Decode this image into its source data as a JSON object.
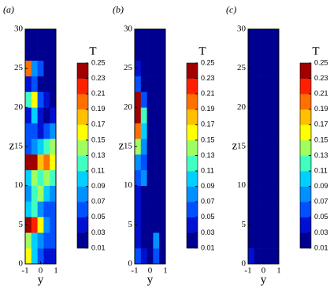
{
  "chart_data": [
    {
      "type": "heatmap",
      "title": "(a)",
      "xlabel": "y",
      "ylabel": "z",
      "colorbar_title": "T",
      "xlim": [
        -1,
        1
      ],
      "ylim": [
        0,
        30
      ],
      "xticks": [
        -1,
        0,
        1
      ],
      "yticks": [
        0,
        5,
        10,
        15,
        20,
        25,
        30
      ],
      "x": [
        -0.8,
        -0.4,
        0,
        0.4,
        0.8
      ],
      "y": [
        1,
        3,
        5,
        7,
        9,
        11,
        13,
        15,
        17,
        19,
        21,
        23,
        25,
        27,
        29
      ],
      "values": [
        [
          0.15,
          0.09,
          0.05,
          0.03,
          0.03
        ],
        [
          0.13,
          0.09,
          0.07,
          0.05,
          0.05
        ],
        [
          0.25,
          0.21,
          0.15,
          0.07,
          0.05
        ],
        [
          0.09,
          0.11,
          0.07,
          0.05,
          0.05
        ],
        [
          0.07,
          0.11,
          0.13,
          0.09,
          0.07
        ],
        [
          0.09,
          0.13,
          0.11,
          0.13,
          0.11
        ],
        [
          0.25,
          0.23,
          0.17,
          0.19,
          0.15
        ],
        [
          0.05,
          0.07,
          0.09,
          0.11,
          0.13
        ],
        [
          0.05,
          0.05,
          0.03,
          0.05,
          0.07
        ],
        [
          0.03,
          0.09,
          0.03,
          0.01,
          0.03
        ],
        [
          0.11,
          0.15,
          0.05,
          0.03,
          0.01
        ],
        [
          0.03,
          0.05,
          0.01,
          0.01,
          0.01
        ],
        [
          0.19,
          0.07,
          0.05,
          0.01,
          0.01
        ],
        [
          0.01,
          0.01,
          0.01,
          0.01,
          0.01
        ],
        [
          0.01,
          0.01,
          0.01,
          0.01,
          0.01
        ]
      ],
      "colorbar_ticks": [
        0.01,
        0.03,
        0.05,
        0.07,
        0.09,
        0.11,
        0.13,
        0.15,
        0.17,
        0.19,
        0.21,
        0.23,
        0.25
      ],
      "colorbar_colors": [
        "#000090",
        "#0010d0",
        "#0050ff",
        "#0090ff",
        "#00d0ff",
        "#40ffc0",
        "#a0ff60",
        "#ffff00",
        "#ffc000",
        "#ff7000",
        "#ff2000",
        "#a00000"
      ]
    },
    {
      "type": "heatmap",
      "title": "(b)",
      "xlabel": "y",
      "ylabel": "z",
      "colorbar_title": "T",
      "xlim": [
        -1,
        1
      ],
      "ylim": [
        0,
        30
      ],
      "xticks": [
        -1,
        0,
        1
      ],
      "yticks": [
        0,
        5,
        10,
        15,
        20,
        25,
        30
      ],
      "x": [
        -0.8,
        -0.4,
        0,
        0.4,
        0.8
      ],
      "y": [
        1,
        3,
        5,
        7,
        9,
        11,
        13,
        15,
        17,
        19,
        21,
        23,
        25,
        27,
        29
      ],
      "values": [
        [
          0.05,
          0.03,
          0.01,
          0.05,
          0.01
        ],
        [
          0.03,
          0.01,
          0.01,
          0.07,
          0.01
        ],
        [
          0.03,
          0.01,
          0.01,
          0.01,
          0.01
        ],
        [
          0.03,
          0.01,
          0.01,
          0.01,
          0.01
        ],
        [
          0.03,
          0.01,
          0.01,
          0.01,
          0.01
        ],
        [
          0.05,
          0.07,
          0.01,
          0.01,
          0.01
        ],
        [
          0.07,
          0.05,
          0.01,
          0.01,
          0.01
        ],
        [
          0.13,
          0.07,
          0.01,
          0.01,
          0.01
        ],
        [
          0.19,
          0.09,
          0.01,
          0.01,
          0.01
        ],
        [
          0.25,
          0.11,
          0.01,
          0.01,
          0.01
        ],
        [
          0.23,
          0.05,
          0.01,
          0.01,
          0.01
        ],
        [
          0.05,
          0.01,
          0.01,
          0.01,
          0.01
        ],
        [
          0.03,
          0.01,
          0.01,
          0.01,
          0.01
        ],
        [
          0.01,
          0.01,
          0.01,
          0.01,
          0.01
        ],
        [
          0.01,
          0.01,
          0.01,
          0.01,
          0.01
        ]
      ],
      "colorbar_ticks": [
        0.01,
        0.03,
        0.05,
        0.07,
        0.09,
        0.11,
        0.13,
        0.15,
        0.17,
        0.19,
        0.21,
        0.23,
        0.25
      ],
      "colorbar_colors": [
        "#000090",
        "#0010d0",
        "#0050ff",
        "#0090ff",
        "#00d0ff",
        "#40ffc0",
        "#a0ff60",
        "#ffff00",
        "#ffc000",
        "#ff7000",
        "#ff2000",
        "#a00000"
      ]
    },
    {
      "type": "heatmap",
      "title": "(c)",
      "xlabel": "y",
      "ylabel": "z",
      "colorbar_title": "T",
      "xlim": [
        -1,
        1
      ],
      "ylim": [
        0,
        30
      ],
      "xticks": [
        -1,
        0,
        1
      ],
      "yticks": [
        0,
        5,
        10,
        15,
        20,
        25,
        30
      ],
      "x": [
        -0.8,
        -0.4,
        0,
        0.4,
        0.8
      ],
      "y": [
        1,
        3,
        5,
        7,
        9,
        11,
        13,
        15,
        17,
        19,
        21,
        23,
        25,
        27,
        29
      ],
      "values": [
        [
          0.03,
          0.01,
          0.01,
          0.01,
          0.01
        ],
        [
          0.01,
          0.01,
          0.01,
          0.01,
          0.01
        ],
        [
          0.01,
          0.01,
          0.01,
          0.01,
          0.01
        ],
        [
          0.01,
          0.01,
          0.01,
          0.01,
          0.01
        ],
        [
          0.01,
          0.01,
          0.01,
          0.01,
          0.01
        ],
        [
          0.01,
          0.01,
          0.01,
          0.01,
          0.01
        ],
        [
          0.01,
          0.01,
          0.01,
          0.01,
          0.01
        ],
        [
          0.01,
          0.01,
          0.01,
          0.01,
          0.01
        ],
        [
          0.01,
          0.01,
          0.01,
          0.01,
          0.01
        ],
        [
          0.01,
          0.01,
          0.01,
          0.01,
          0.01
        ],
        [
          0.01,
          0.01,
          0.01,
          0.01,
          0.01
        ],
        [
          0.01,
          0.01,
          0.01,
          0.01,
          0.01
        ],
        [
          0.01,
          0.01,
          0.01,
          0.01,
          0.01
        ],
        [
          0.01,
          0.01,
          0.01,
          0.01,
          0.01
        ],
        [
          0.01,
          0.01,
          0.01,
          0.01,
          0.01
        ]
      ],
      "colorbar_ticks": [
        0.01,
        0.03,
        0.05,
        0.07,
        0.09,
        0.11,
        0.13,
        0.15,
        0.17,
        0.19,
        0.21,
        0.23,
        0.25
      ],
      "colorbar_colors": [
        "#000090",
        "#0010d0",
        "#0050ff",
        "#0090ff",
        "#00d0ff",
        "#40ffc0",
        "#a0ff60",
        "#ffff00",
        "#ffc000",
        "#ff7000",
        "#ff2000",
        "#a00000"
      ]
    }
  ]
}
